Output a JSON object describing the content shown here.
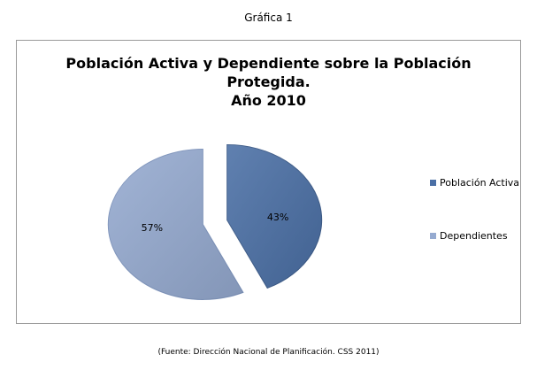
{
  "caption": "Gráfica 1",
  "source": "(Fuente: Dirección Nacional de Planificación. CSS 2011)",
  "chart_data": {
    "type": "pie",
    "title_lines": [
      "Población Activa y Dependiente sobre la Población",
      "Protegida.",
      "Año 2010"
    ],
    "categories": [
      "Población Activa",
      "Dependientes"
    ],
    "values": [
      43,
      57
    ],
    "value_labels": [
      "43%",
      "57%"
    ],
    "colors": [
      "#4a6fa5",
      "#95aad0"
    ],
    "legend_position": "right",
    "exploded": true
  }
}
